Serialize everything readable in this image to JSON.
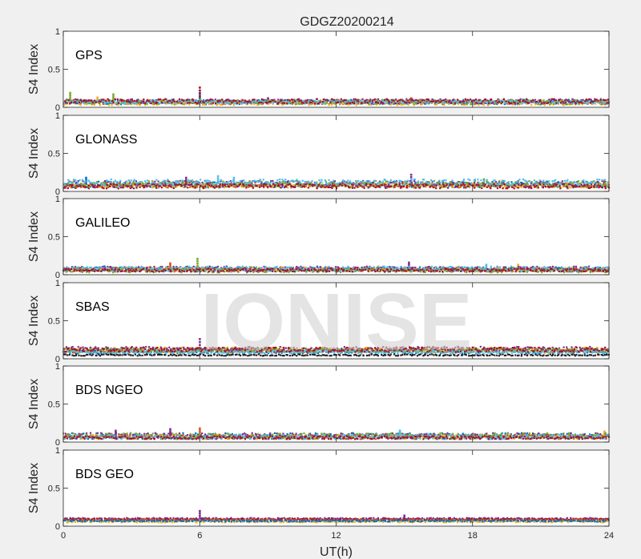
{
  "figure": {
    "title": "GDGZ20200214",
    "watermark": "IONISE",
    "background": "#f0f0f0",
    "axes_background": "#ffffff"
  },
  "chart_data": [
    {
      "type": "scatter",
      "panel_label": "GPS",
      "ylabel": "S4 Index",
      "xlim": [
        0,
        24
      ],
      "ylim": [
        0,
        1
      ],
      "yticks": [
        "0",
        "0.5",
        "1"
      ],
      "xticks": [],
      "grid": false,
      "series": [
        {
          "color": "#0072BD",
          "baseline": 0.07,
          "spread": 0.03,
          "spikes": [
            [
              6.0,
              0.22
            ]
          ]
        },
        {
          "color": "#D95319",
          "baseline": 0.07,
          "spread": 0.03,
          "spikes": [
            [
              15.3,
              0.12
            ]
          ]
        },
        {
          "color": "#EDB120",
          "baseline": 0.06,
          "spread": 0.03,
          "spikes": [
            [
              1.5,
              0.13
            ]
          ]
        },
        {
          "color": "#7E2F8E",
          "baseline": 0.08,
          "spread": 0.03,
          "spikes": [
            [
              9.0,
              0.12
            ]
          ]
        },
        {
          "color": "#77AC30",
          "baseline": 0.07,
          "spread": 0.03,
          "spikes": [
            [
              0.3,
              0.19
            ],
            [
              2.2,
              0.17
            ]
          ]
        },
        {
          "color": "#4DBEEE",
          "baseline": 0.07,
          "spread": 0.02,
          "spikes": []
        },
        {
          "color": "#A2142F",
          "baseline": 0.08,
          "spread": 0.03,
          "spikes": [
            [
              6.0,
              0.26
            ]
          ]
        }
      ]
    },
    {
      "type": "scatter",
      "panel_label": "GLONASS",
      "ylabel": "S4 Index",
      "xlim": [
        0,
        24
      ],
      "ylim": [
        0,
        1
      ],
      "yticks": [
        "0",
        "0.5",
        "1"
      ],
      "xticks": [],
      "grid": false,
      "series": [
        {
          "color": "#0072BD",
          "baseline": 0.09,
          "spread": 0.04,
          "spikes": [
            [
              1.0,
              0.18
            ]
          ]
        },
        {
          "color": "#D95319",
          "baseline": 0.08,
          "spread": 0.03,
          "spikes": [
            [
              23.8,
              0.14
            ]
          ]
        },
        {
          "color": "#EDB120",
          "baseline": 0.08,
          "spread": 0.03,
          "spikes": []
        },
        {
          "color": "#7E2F8E",
          "baseline": 0.1,
          "spread": 0.04,
          "spikes": [
            [
              5.4,
              0.18
            ],
            [
              15.3,
              0.22
            ]
          ]
        },
        {
          "color": "#77AC30",
          "baseline": 0.1,
          "spread": 0.04,
          "spikes": [
            [
              18.5,
              0.16
            ]
          ]
        },
        {
          "color": "#4DBEEE",
          "baseline": 0.12,
          "spread": 0.04,
          "spikes": [
            [
              6.8,
              0.2
            ],
            [
              7.5,
              0.18
            ]
          ]
        },
        {
          "color": "#A2142F",
          "baseline": 0.07,
          "spread": 0.03,
          "spikes": []
        }
      ]
    },
    {
      "type": "scatter",
      "panel_label": "GALILEO",
      "ylabel": "S4 Index",
      "xlim": [
        0,
        24
      ],
      "ylim": [
        0,
        1
      ],
      "yticks": [
        "0",
        "0.5",
        "1"
      ],
      "xticks": [],
      "grid": false,
      "series": [
        {
          "color": "#0072BD",
          "baseline": 0.07,
          "spread": 0.03,
          "spikes": [
            [
              1.8,
              0.11
            ]
          ]
        },
        {
          "color": "#D95319",
          "baseline": 0.07,
          "spread": 0.03,
          "spikes": [
            [
              4.7,
              0.15
            ]
          ]
        },
        {
          "color": "#EDB120",
          "baseline": 0.07,
          "spread": 0.03,
          "spikes": [
            [
              20.0,
              0.13
            ]
          ]
        },
        {
          "color": "#7E2F8E",
          "baseline": 0.08,
          "spread": 0.03,
          "spikes": [
            [
              15.2,
              0.16
            ]
          ]
        },
        {
          "color": "#77AC30",
          "baseline": 0.06,
          "spread": 0.03,
          "spikes": [
            [
              5.9,
              0.21
            ]
          ]
        },
        {
          "color": "#4DBEEE",
          "baseline": 0.08,
          "spread": 0.03,
          "spikes": [
            [
              18.6,
              0.13
            ]
          ]
        },
        {
          "color": "#A2142F",
          "baseline": 0.06,
          "spread": 0.02,
          "spikes": []
        }
      ]
    },
    {
      "type": "scatter",
      "panel_label": "SBAS",
      "ylabel": "S4 Index",
      "xlim": [
        0,
        24
      ],
      "ylim": [
        0,
        1
      ],
      "yticks": [
        "0",
        "0.5",
        "1"
      ],
      "xticks": [],
      "grid": false,
      "series": [
        {
          "color": "#0072BD",
          "baseline": 0.1,
          "spread": 0.03,
          "spikes": []
        },
        {
          "color": "#D95319",
          "baseline": 0.11,
          "spread": 0.03,
          "spikes": []
        },
        {
          "color": "#EDB120",
          "baseline": 0.12,
          "spread": 0.03,
          "spikes": []
        },
        {
          "color": "#7E2F8E",
          "baseline": 0.13,
          "spread": 0.03,
          "spikes": [
            [
              6.0,
              0.26
            ]
          ]
        },
        {
          "color": "#77AC30",
          "baseline": 0.11,
          "spread": 0.03,
          "spikes": []
        },
        {
          "color": "#4DBEEE",
          "baseline": 0.09,
          "spread": 0.02,
          "spikes": []
        },
        {
          "color": "#A2142F",
          "baseline": 0.12,
          "spread": 0.03,
          "spikes": []
        },
        {
          "color": "#222222",
          "baseline": 0.05,
          "spread": 0.01,
          "spikes": []
        }
      ]
    },
    {
      "type": "scatter",
      "panel_label": "BDS NGEO",
      "ylabel": "S4 Index",
      "xlim": [
        0,
        24
      ],
      "ylim": [
        0,
        1
      ],
      "yticks": [
        "0",
        "0.5",
        "1"
      ],
      "xticks": [],
      "grid": false,
      "series": [
        {
          "color": "#0072BD",
          "baseline": 0.08,
          "spread": 0.04,
          "spikes": []
        },
        {
          "color": "#D95319",
          "baseline": 0.07,
          "spread": 0.03,
          "spikes": [
            [
              6.0,
              0.18
            ]
          ]
        },
        {
          "color": "#EDB120",
          "baseline": 0.07,
          "spread": 0.03,
          "spikes": [
            [
              23.8,
              0.14
            ]
          ]
        },
        {
          "color": "#7E2F8E",
          "baseline": 0.08,
          "spread": 0.04,
          "spikes": [
            [
              4.7,
              0.17
            ],
            [
              2.3,
              0.15
            ]
          ]
        },
        {
          "color": "#77AC30",
          "baseline": 0.08,
          "spread": 0.04,
          "spikes": []
        },
        {
          "color": "#4DBEEE",
          "baseline": 0.07,
          "spread": 0.03,
          "spikes": [
            [
              14.8,
              0.15
            ]
          ]
        },
        {
          "color": "#A2142F",
          "baseline": 0.06,
          "spread": 0.02,
          "spikes": []
        }
      ]
    },
    {
      "type": "scatter",
      "panel_label": "BDS GEO",
      "ylabel": "S4 Index",
      "xlim": [
        0,
        24
      ],
      "ylim": [
        0,
        1
      ],
      "yticks": [
        "0",
        "0.5",
        "1"
      ],
      "xticks": [
        "0",
        "6",
        "12",
        "18",
        "24"
      ],
      "xlabel": "UT(h)",
      "grid": false,
      "series": [
        {
          "color": "#7E2F8E",
          "baseline": 0.1,
          "spread": 0.01,
          "spikes": [
            [
              6.0,
              0.2
            ],
            [
              15.0,
              0.14
            ]
          ]
        },
        {
          "color": "#A2142F",
          "baseline": 0.09,
          "spread": 0.01,
          "spikes": []
        },
        {
          "color": "#D95319",
          "baseline": 0.08,
          "spread": 0.01,
          "spikes": []
        },
        {
          "color": "#EDB120",
          "baseline": 0.06,
          "spread": 0.01,
          "spikes": []
        },
        {
          "color": "#0072BD",
          "baseline": 0.07,
          "spread": 0.01,
          "spikes": []
        }
      ]
    }
  ]
}
